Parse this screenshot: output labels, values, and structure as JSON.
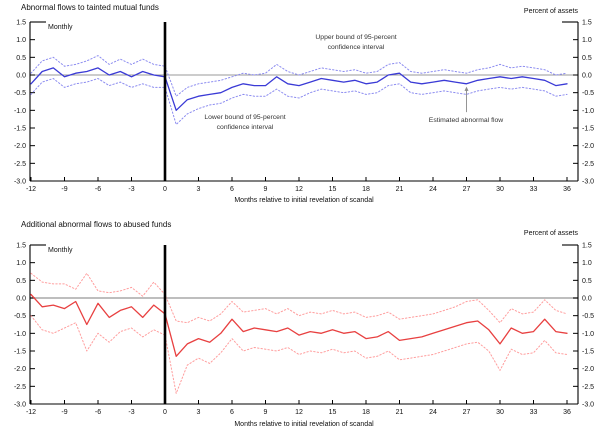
{
  "figure": {
    "background": "#ffffff",
    "event_line_color": "#000000",
    "axis_color": "#000000"
  },
  "chart_data": [
    {
      "type": "line",
      "title": "Abnormal flows to tainted mutual funds",
      "corner_label": "Monthly",
      "right_axis_label": "Percent of assets",
      "xlabel": "Months relative to initial revelation of scandal",
      "ylim": [
        -3.0,
        1.5
      ],
      "grid": false,
      "legend_position": "annotations-in-plot",
      "y_tick_labels": [
        "1.5",
        "1.0",
        "0.5",
        "0.0",
        "-0.5",
        "-1.0",
        "-1.5",
        "-2.0",
        "-2.5",
        "-3.0"
      ],
      "x_ticks": [
        -12,
        -9,
        -6,
        -3,
        0,
        3,
        6,
        9,
        12,
        15,
        18,
        21,
        24,
        27,
        30,
        33,
        36
      ],
      "event_line_x": 0,
      "x": [
        -12,
        -11,
        -10,
        -9,
        -8,
        -7,
        -6,
        -5,
        -4,
        -3,
        -2,
        -1,
        0,
        1,
        2,
        3,
        4,
        5,
        6,
        7,
        8,
        9,
        10,
        11,
        12,
        13,
        14,
        15,
        16,
        17,
        18,
        19,
        20,
        21,
        22,
        23,
        24,
        25,
        26,
        27,
        28,
        29,
        30,
        31,
        32,
        33,
        34,
        35,
        36
      ],
      "series": [
        {
          "name": "Estimated abnormal flow",
          "style": "solid",
          "color": "#3a3ad6",
          "values": [
            -0.25,
            0.1,
            0.2,
            -0.05,
            0.05,
            0.1,
            0.2,
            0.0,
            0.1,
            -0.05,
            0.1,
            0.0,
            -0.05,
            -1.0,
            -0.7,
            -0.6,
            -0.55,
            -0.5,
            -0.35,
            -0.25,
            -0.3,
            -0.3,
            -0.05,
            -0.25,
            -0.3,
            -0.2,
            -0.1,
            -0.15,
            -0.2,
            -0.15,
            -0.25,
            -0.2,
            0.0,
            0.05,
            -0.2,
            -0.25,
            -0.2,
            -0.15,
            -0.2,
            -0.25,
            -0.15,
            -0.1,
            -0.05,
            -0.1,
            -0.05,
            -0.1,
            -0.15,
            -0.3,
            -0.25
          ]
        },
        {
          "name": "Upper bound of 95-percent confidence interval",
          "style": "dotted",
          "color": "#8c8cf0",
          "values": [
            0.05,
            0.4,
            0.5,
            0.25,
            0.3,
            0.4,
            0.55,
            0.3,
            0.45,
            0.3,
            0.45,
            0.3,
            0.25,
            -0.6,
            -0.35,
            -0.25,
            -0.2,
            -0.15,
            -0.05,
            0.05,
            0.0,
            0.05,
            0.3,
            0.1,
            0.0,
            0.1,
            0.2,
            0.15,
            0.1,
            0.15,
            0.05,
            0.1,
            0.3,
            0.35,
            0.1,
            0.05,
            0.1,
            0.15,
            0.1,
            0.05,
            0.15,
            0.2,
            0.3,
            0.2,
            0.25,
            0.2,
            0.15,
            0.0,
            0.05
          ]
        },
        {
          "name": "Lower bound of 95-percent confidence interval",
          "style": "dotted",
          "color": "#8c8cf0",
          "values": [
            -0.55,
            -0.2,
            -0.1,
            -0.35,
            -0.25,
            -0.2,
            -0.1,
            -0.3,
            -0.2,
            -0.35,
            -0.25,
            -0.35,
            -0.35,
            -1.4,
            -1.1,
            -0.95,
            -0.85,
            -0.8,
            -0.65,
            -0.55,
            -0.6,
            -0.6,
            -0.4,
            -0.6,
            -0.65,
            -0.5,
            -0.4,
            -0.45,
            -0.5,
            -0.45,
            -0.55,
            -0.5,
            -0.3,
            -0.25,
            -0.5,
            -0.55,
            -0.5,
            -0.45,
            -0.5,
            -0.55,
            -0.45,
            -0.4,
            -0.35,
            -0.4,
            -0.35,
            -0.4,
            -0.45,
            -0.6,
            -0.55
          ]
        }
      ],
      "annotations": [
        {
          "id": "upper-bound-note",
          "text": "Upper bound of 95-percent\nconfidence interval"
        },
        {
          "id": "lower-bound-note",
          "text": "Lower bound of 95-percent\nconfidence interval"
        },
        {
          "id": "estimated-flow-note",
          "text": "Estimated abnormal flow",
          "arrow_month": 27
        }
      ]
    },
    {
      "type": "line",
      "title": "Additional abnormal flows to abused funds",
      "corner_label": "Monthly",
      "right_axis_label": "Percent of assets",
      "xlabel": "Months relative to initial revelation of scandal",
      "ylim": [
        -3.0,
        1.5
      ],
      "grid": false,
      "legend_position": "none",
      "y_tick_labels": [
        "1.5",
        "1.0",
        "0.5",
        "0.0",
        "-0.5",
        "-1.0",
        "-1.5",
        "-2.0",
        "-2.5",
        "-3.0"
      ],
      "x_ticks": [
        -12,
        -9,
        -6,
        -3,
        0,
        3,
        6,
        9,
        12,
        15,
        18,
        21,
        24,
        27,
        30,
        33,
        36
      ],
      "event_line_x": 0,
      "x": [
        -12,
        -11,
        -10,
        -9,
        -8,
        -7,
        -6,
        -5,
        -4,
        -3,
        -2,
        -1,
        0,
        1,
        2,
        3,
        4,
        5,
        6,
        7,
        8,
        9,
        10,
        11,
        12,
        13,
        14,
        15,
        16,
        17,
        18,
        19,
        20,
        21,
        22,
        23,
        24,
        25,
        26,
        27,
        28,
        29,
        30,
        31,
        32,
        33,
        34,
        35,
        36
      ],
      "series": [
        {
          "name": "Estimated abnormal flow",
          "style": "solid",
          "color": "#e84040",
          "values": [
            0.1,
            -0.25,
            -0.2,
            -0.3,
            -0.1,
            -0.75,
            -0.15,
            -0.55,
            -0.35,
            -0.25,
            -0.55,
            -0.2,
            -0.45,
            -1.65,
            -1.3,
            -1.15,
            -1.25,
            -1.0,
            -0.6,
            -0.95,
            -0.85,
            -0.9,
            -0.95,
            -0.85,
            -1.05,
            -0.95,
            -1.0,
            -0.9,
            -1.0,
            -0.95,
            -1.15,
            -1.1,
            -0.95,
            -1.2,
            -1.15,
            -1.1,
            -1.0,
            -0.9,
            -0.8,
            -0.7,
            -0.65,
            -0.9,
            -1.3,
            -0.85,
            -1.0,
            -0.95,
            -0.6,
            -0.95,
            -1.0
          ]
        },
        {
          "name": "Upper bound of 95-percent confidence interval",
          "style": "dotted",
          "color": "#ff9d9d",
          "values": [
            0.7,
            0.45,
            0.4,
            0.4,
            0.25,
            0.7,
            0.2,
            0.15,
            0.2,
            0.3,
            0.05,
            0.45,
            0.1,
            -0.65,
            -0.7,
            -0.55,
            -0.65,
            -0.45,
            -0.1,
            -0.4,
            -0.35,
            -0.3,
            -0.45,
            -0.3,
            -0.5,
            -0.4,
            -0.45,
            -0.35,
            -0.45,
            -0.4,
            -0.55,
            -0.5,
            -0.4,
            -0.6,
            -0.55,
            -0.5,
            -0.45,
            -0.35,
            -0.25,
            -0.1,
            -0.05,
            -0.35,
            -0.7,
            -0.3,
            -0.45,
            -0.4,
            -0.05,
            -0.35,
            -0.45
          ]
        },
        {
          "name": "Lower bound of 95-percent confidence interval",
          "style": "dotted",
          "color": "#ff9d9d",
          "values": [
            -0.5,
            -0.9,
            -1.0,
            -0.85,
            -0.7,
            -1.5,
            -1.0,
            -1.25,
            -0.95,
            -0.85,
            -1.1,
            -0.9,
            -1.05,
            -2.7,
            -1.9,
            -1.7,
            -1.85,
            -1.55,
            -1.15,
            -1.5,
            -1.4,
            -1.45,
            -1.5,
            -1.4,
            -1.6,
            -1.5,
            -1.55,
            -1.45,
            -1.55,
            -1.5,
            -1.7,
            -1.65,
            -1.5,
            -1.75,
            -1.7,
            -1.65,
            -1.6,
            -1.5,
            -1.4,
            -1.3,
            -1.25,
            -1.5,
            -2.05,
            -1.45,
            -1.6,
            -1.55,
            -1.2,
            -1.55,
            -1.6
          ]
        }
      ],
      "annotations": []
    }
  ]
}
